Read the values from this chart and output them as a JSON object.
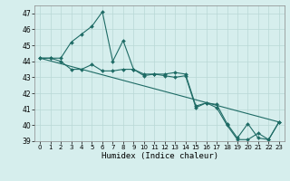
{
  "title": "",
  "xlabel": "Humidex (Indice chaleur)",
  "ylabel": "",
  "background_color": "#d6eeed",
  "grid_color": "#b8d8d5",
  "line_color": "#1e6b65",
  "xlim": [
    -0.5,
    23.5
  ],
  "ylim": [
    39,
    47.5
  ],
  "yticks": [
    39,
    40,
    41,
    42,
    43,
    44,
    45,
    46,
    47
  ],
  "xticks": [
    0,
    1,
    2,
    3,
    4,
    5,
    6,
    7,
    8,
    9,
    10,
    11,
    12,
    13,
    14,
    15,
    16,
    17,
    18,
    19,
    20,
    21,
    22,
    23
  ],
  "line1_x": [
    0,
    1,
    2,
    3,
    4,
    5,
    6,
    7,
    8,
    9,
    10,
    11,
    12,
    13,
    14,
    15,
    16,
    17,
    18,
    19,
    20,
    21,
    22,
    23
  ],
  "line1_y": [
    44.2,
    44.2,
    44.2,
    45.2,
    45.7,
    46.2,
    47.1,
    44.0,
    45.3,
    43.5,
    43.1,
    43.2,
    43.2,
    43.3,
    43.2,
    41.2,
    41.4,
    41.3,
    40.1,
    39.2,
    40.1,
    39.2,
    39.1,
    40.2
  ],
  "line2_x": [
    0,
    1,
    2,
    3,
    4,
    5,
    6,
    7,
    8,
    9,
    10,
    11,
    12,
    13,
    14,
    15,
    16,
    17,
    18,
    19,
    20,
    21,
    22,
    23
  ],
  "line2_y": [
    44.2,
    44.2,
    44.0,
    43.5,
    43.5,
    43.8,
    43.4,
    43.4,
    43.5,
    43.5,
    43.2,
    43.2,
    43.1,
    43.0,
    43.1,
    41.1,
    41.4,
    41.1,
    40.0,
    39.1,
    39.1,
    39.5,
    39.1,
    40.2
  ],
  "line3_x": [
    0,
    23
  ],
  "line3_y": [
    44.2,
    40.2
  ]
}
